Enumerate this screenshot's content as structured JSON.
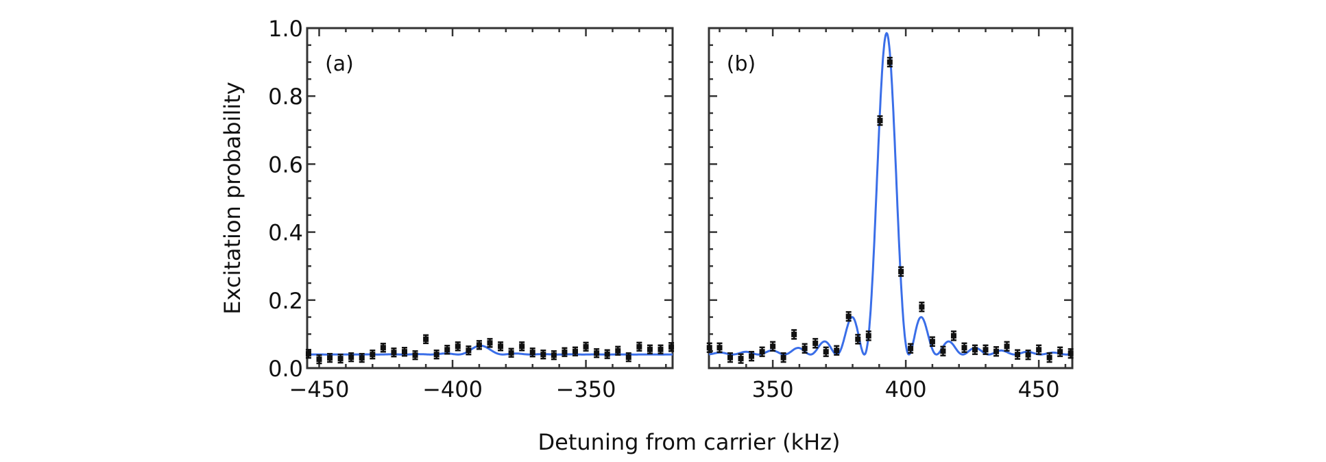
{
  "chart_data": [
    {
      "type": "scatter",
      "panel_label": "(a)",
      "xlim": [
        -454.5,
        -317.5
      ],
      "ylim": [
        0,
        1.0
      ],
      "xticks": [
        -450,
        -400,
        -350
      ],
      "xtick_labels": [
        "−450",
        "−400",
        "−350"
      ],
      "yticks": [
        0,
        0.2,
        0.4,
        0.6,
        0.8,
        1.0
      ],
      "ytick_labels": [
        "0.0",
        "0.2",
        "0.4",
        "0.6",
        "0.8",
        "1.0"
      ],
      "x": [
        -454,
        -450,
        -446,
        -442,
        -438,
        -434,
        -430,
        -426,
        -422,
        -418,
        -414,
        -410,
        -406,
        -402,
        -398,
        -394,
        -390,
        -386,
        -382,
        -378,
        -374,
        -370,
        -366,
        -362,
        -358,
        -354,
        -350,
        -346,
        -342,
        -338,
        -334,
        -330,
        -326,
        -322,
        -318
      ],
      "y": [
        0.042,
        0.026,
        0.03,
        0.028,
        0.032,
        0.03,
        0.04,
        0.06,
        0.046,
        0.048,
        0.038,
        0.085,
        0.04,
        0.054,
        0.064,
        0.052,
        0.068,
        0.074,
        0.064,
        0.045,
        0.064,
        0.046,
        0.04,
        0.038,
        0.047,
        0.049,
        0.063,
        0.044,
        0.041,
        0.051,
        0.032,
        0.063,
        0.055,
        0.055,
        0.062
      ],
      "yerr": 0.012,
      "fit": {
        "center": -389.5,
        "rabi_khz": 4.84,
        "amplitude": 0.026,
        "baseline": 0.04,
        "color": "#3a6ee8"
      }
    },
    {
      "type": "scatter",
      "panel_label": "(b)",
      "xlim": [
        326,
        462.6
      ],
      "ylim": [
        0,
        1.0
      ],
      "xticks": [
        350,
        400,
        450
      ],
      "xtick_labels": [
        "350",
        "400",
        "450"
      ],
      "yticks": [
        0,
        0.2,
        0.4,
        0.6,
        0.8,
        1.0
      ],
      "x": [
        326.2,
        330,
        334,
        338,
        342,
        346,
        350,
        354,
        358,
        362,
        366,
        370,
        374,
        378.5,
        382,
        386,
        390.3,
        394,
        398.2,
        401.8,
        406,
        410,
        414,
        418,
        422,
        426,
        430,
        434,
        438,
        442,
        446,
        450,
        454,
        458,
        462
      ],
      "y": [
        0.06,
        0.06,
        0.031,
        0.028,
        0.035,
        0.048,
        0.064,
        0.031,
        0.099,
        0.058,
        0.073,
        0.048,
        0.052,
        0.152,
        0.085,
        0.095,
        0.728,
        0.9,
        0.284,
        0.058,
        0.18,
        0.078,
        0.05,
        0.095,
        0.06,
        0.054,
        0.054,
        0.049,
        0.064,
        0.04,
        0.039,
        0.054,
        0.031,
        0.048,
        0.043
      ],
      "yerr": 0.013,
      "fit": {
        "center": 392.8,
        "rabi_khz": 4.84,
        "amplitude": 0.945,
        "baseline": 0.04,
        "color": "#3a6ee8"
      }
    }
  ],
  "ylabel": "Excitation probability",
  "xlabel": "Detuning from carrier (kHz)"
}
